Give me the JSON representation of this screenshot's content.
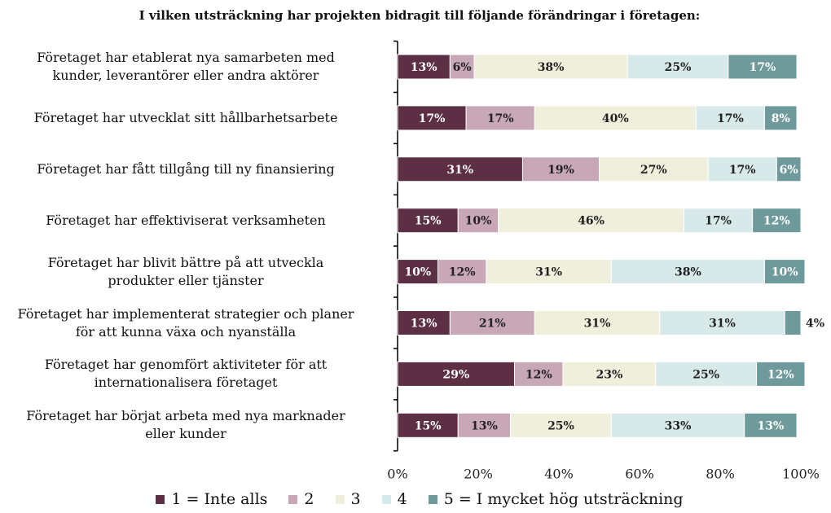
{
  "chart_data": {
    "type": "stacked-barh",
    "title": "I vilken utsträckning har projekten bidragit till följande förändringar i företagen:",
    "categories": [
      "Företaget har etablerat nya samarbeten med\nkunder, leverantörer eller andra aktörer",
      "Företaget har utvecklat sitt hållbarhetsarbete",
      "Företaget har fått tillgång till ny finansiering",
      "Företaget har effektiviserat verksamheten",
      "Företaget har blivit bättre på att utveckla\nprodukter eller tjänster",
      "Företaget har implementerat strategier och planer\nför att kunna växa och nyanställa",
      "Företaget har genomfört aktiviteter för att\ninternationalisera företaget",
      "Företaget har börjat arbeta med nya marknader\neller kunder"
    ],
    "series": [
      {
        "name": "1 = Inte alls",
        "color": "#5c2f45",
        "values": [
          13,
          17,
          31,
          15,
          10,
          13,
          29,
          15
        ],
        "value_labels": [
          "13%",
          "17%",
          "31%",
          "15%",
          "10%",
          "13%",
          "29%",
          "15%"
        ]
      },
      {
        "name": "2",
        "color": "#c8a7b7",
        "values": [
          6,
          17,
          19,
          10,
          12,
          21,
          12,
          13
        ],
        "value_labels": [
          "6%",
          "17%",
          "19%",
          "10%",
          "12%",
          "21%",
          "12%",
          "13%"
        ]
      },
      {
        "name": "3",
        "color": "#efefdc",
        "values": [
          38,
          40,
          27,
          46,
          31,
          31,
          23,
          25
        ],
        "value_labels": [
          "38%",
          "40%",
          "27%",
          "46%",
          "31%",
          "31%",
          "23%",
          "25%"
        ]
      },
      {
        "name": "4",
        "color": "#d7e9e9",
        "values": [
          25,
          17,
          17,
          17,
          38,
          31,
          25,
          33
        ],
        "value_labels": [
          "25%",
          "17%",
          "17%",
          "17%",
          "38%",
          "31%",
          "25%",
          "33%"
        ]
      },
      {
        "name": "5 = I mycket hög utsträckning",
        "color": "#6f9a9b",
        "values": [
          17,
          8,
          6,
          12,
          10,
          4,
          12,
          13
        ],
        "value_labels": [
          "17%",
          "8%",
          "6%",
          "12%",
          "10%",
          "4%",
          "12%",
          "13%"
        ]
      }
    ],
    "xlim": [
      0,
      100
    ],
    "xticks": [
      {
        "value": 0,
        "label": "0%"
      },
      {
        "value": 20,
        "label": "20%"
      },
      {
        "value": 40,
        "label": "40%"
      },
      {
        "value": 60,
        "label": "60%"
      },
      {
        "value": 80,
        "label": "80%"
      },
      {
        "value": 100,
        "label": "100%"
      }
    ],
    "legend": "bottom"
  }
}
